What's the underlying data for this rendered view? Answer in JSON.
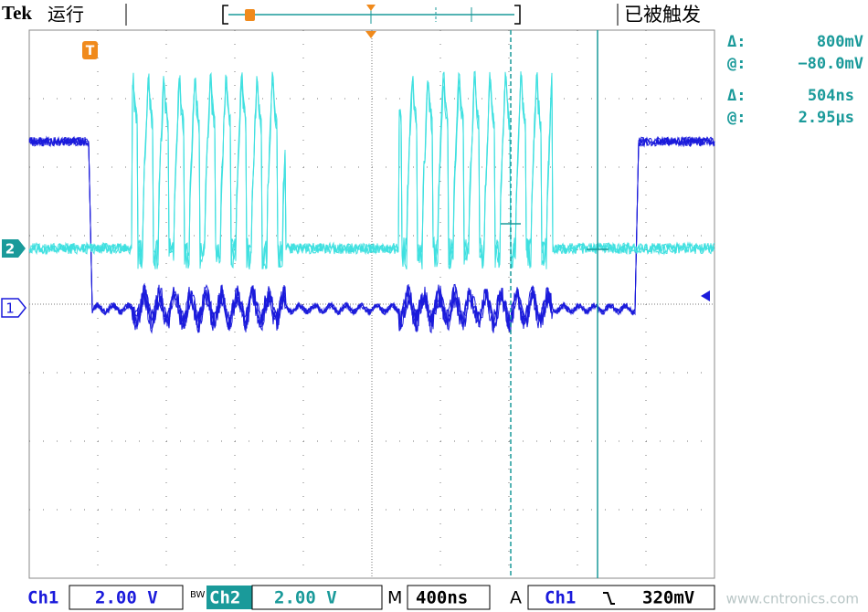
{
  "header": {
    "brand": "Tek",
    "status": "运行",
    "trigger_status": "已被触发"
  },
  "readouts": [
    {
      "label": "Δ:",
      "value": "800mV"
    },
    {
      "label": "@:",
      "value": "−80.0mV"
    },
    {
      "label": "Δ:",
      "value": "504ns"
    },
    {
      "label": "@:",
      "value": "2.95µs"
    }
  ],
  "markers": {
    "trigger": "T",
    "ch2": "2",
    "ch1": "1"
  },
  "footer": {
    "ch1_label": "Ch1",
    "ch1_scale": "2.00 V",
    "bw": "BW",
    "ch2_label": "Ch2",
    "ch2_scale": "2.00 V",
    "time_label": "M",
    "time_scale": "400ns",
    "trigger_label": "A",
    "trigger_source": "Ch1",
    "trigger_level": "320mV"
  },
  "watermark": "www.cntronics.com"
}
